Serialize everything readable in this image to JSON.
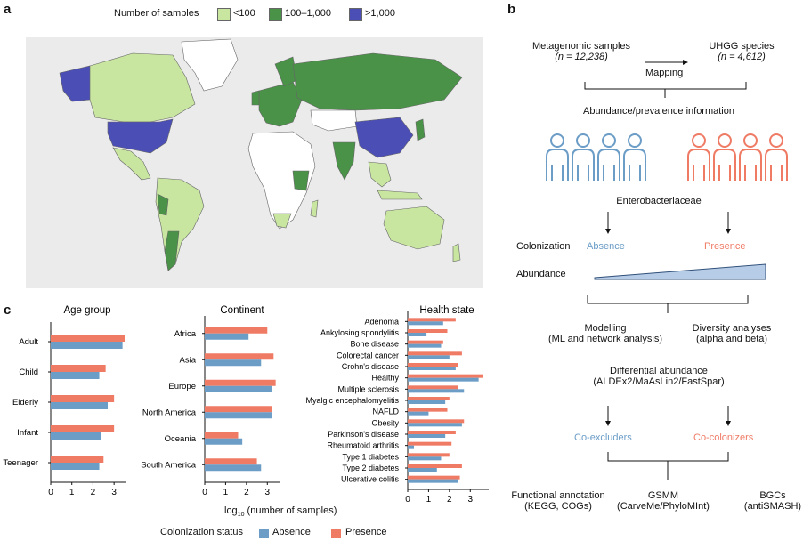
{
  "panel_a": {
    "letter": "a",
    "legend_title": "Number of samples",
    "legend_items": [
      {
        "label": "<100",
        "color": "#c8e6a0"
      },
      {
        "label": "100–1,000",
        "color": "#4a9248"
      },
      {
        "label": ">1,000",
        "color": "#4b4fb5"
      }
    ],
    "map_bg": "#ebebeb"
  },
  "panel_b": {
    "letter": "b",
    "samples_title": "Metagenomic samples",
    "samples_n": "(n = 12,238)",
    "mapping": "Mapping",
    "species_title": "UHGG species",
    "species_n": "(n = 4,612)",
    "abundance_info": "Abundance/prevalence information",
    "entero": "Enterobacteriaceae",
    "colonization_label": "Colonization",
    "absence": "Absence",
    "presence": "Presence",
    "abundance_label": "Abundance",
    "modelling": "Modelling",
    "modelling_sub": "(ML and network analysis)",
    "diversity": "Diversity analyses",
    "diversity_sub": "(alpha and beta)",
    "diff_abundance": "Differential abundance",
    "diff_tools": "(ALDEx2/MaAsLin2/FastSpar)",
    "co_excluders": "Co-excluders",
    "co_colonizers": "Co-colonizers",
    "functional": "Functional annotation",
    "functional_sub": "(KEGG, COGs)",
    "gsmm": "GSMM",
    "gsmm_sub": "(CarveMe/PhyloMInt)",
    "bgcs": "BGCs",
    "bgcs_sub": "(antiSMASH)",
    "absence_color": "#6b9dc7",
    "presence_color": "#ef7b65"
  },
  "panel_c": {
    "letter": "c",
    "x_label_prefix": "log",
    "x_label_sub": "10",
    "x_label_suffix": " (number of samples)",
    "legend_title": "Colonization status",
    "legend_absence": "Absence",
    "legend_presence": "Presence"
  },
  "chart_data": [
    {
      "type": "bar",
      "title": "Age group",
      "orientation": "horizontal",
      "categories": [
        "Adult",
        "Child",
        "Elderly",
        "Infant",
        "Teenager"
      ],
      "series": [
        {
          "name": "Presence",
          "color": "#ef7b65",
          "values": [
            3.5,
            2.6,
            3.0,
            3.0,
            2.5
          ]
        },
        {
          "name": "Absence",
          "color": "#6b9dc7",
          "values": [
            3.4,
            2.3,
            2.7,
            2.4,
            2.3
          ]
        }
      ],
      "xlim": [
        0,
        3.5
      ],
      "xticks": [
        0,
        1,
        2,
        3
      ]
    },
    {
      "type": "bar",
      "title": "Continent",
      "orientation": "horizontal",
      "categories": [
        "Africa",
        "Asia",
        "Europe",
        "North America",
        "Oceania",
        "South America"
      ],
      "series": [
        {
          "name": "Presence",
          "color": "#ef7b65",
          "values": [
            3.0,
            3.3,
            3.4,
            3.2,
            1.6,
            2.5
          ]
        },
        {
          "name": "Absence",
          "color": "#6b9dc7",
          "values": [
            2.1,
            2.7,
            3.2,
            3.2,
            1.8,
            2.7
          ]
        }
      ],
      "xlim": [
        0,
        3.5
      ],
      "xticks": [
        0,
        1,
        2,
        3
      ]
    },
    {
      "type": "bar",
      "title": "Health state",
      "orientation": "horizontal",
      "categories": [
        "Adenoma",
        "Ankylosing spondylitis",
        "Bone disease",
        "Colorectal cancer",
        "Crohn's disease",
        "Healthy",
        "Multiple sclerosis",
        "Myalgic encephalomyelitis",
        "NAFLD",
        "Obesity",
        "Parkinson's disease",
        "Rheumatoid arthritis",
        "Type 1 diabetes",
        "Type 2 diabetes",
        "Ulcerative colitis"
      ],
      "series": [
        {
          "name": "Presence",
          "color": "#ef7b65",
          "values": [
            2.3,
            1.9,
            1.7,
            2.6,
            2.4,
            3.6,
            2.4,
            2.0,
            1.9,
            2.7,
            2.3,
            2.1,
            2.0,
            2.6,
            2.5
          ]
        },
        {
          "name": "Absence",
          "color": "#6b9dc7",
          "values": [
            1.7,
            0.9,
            1.6,
            2.0,
            2.3,
            3.4,
            2.7,
            1.8,
            1.0,
            2.6,
            1.8,
            0.3,
            1.6,
            1.4,
            2.4
          ]
        }
      ],
      "xlim": [
        0,
        3.8
      ],
      "xticks": [
        0,
        1,
        2,
        3
      ]
    }
  ]
}
